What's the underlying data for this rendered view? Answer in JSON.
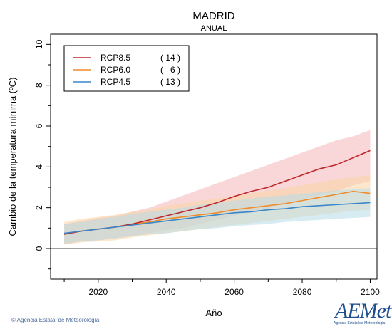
{
  "chart_data": {
    "type": "line",
    "title": "MADRID",
    "subtitle": "ANUAL",
    "xlabel": "Año",
    "ylabel": "Cambio de la temperatura mínima (ºC)",
    "xlim": [
      2006,
      2102
    ],
    "ylim": [
      -1.5,
      10.5
    ],
    "x_ticks": [
      2020,
      2040,
      2060,
      2080,
      2100
    ],
    "y_ticks": [
      0,
      2,
      4,
      6,
      8,
      10
    ],
    "legend_position": "top-left",
    "grid": false,
    "zero_line": true,
    "series": [
      {
        "name": "RCP8.5",
        "count": "( 14 )",
        "color": "#c0272d",
        "band_color": "#f4b6b9",
        "x": [
          2010,
          2015,
          2020,
          2025,
          2030,
          2035,
          2040,
          2045,
          2050,
          2055,
          2060,
          2065,
          2070,
          2075,
          2080,
          2085,
          2090,
          2095,
          2100
        ],
        "mean": [
          0.7,
          0.85,
          0.95,
          1.05,
          1.2,
          1.4,
          1.6,
          1.8,
          2.0,
          2.25,
          2.55,
          2.8,
          3.0,
          3.3,
          3.6,
          3.9,
          4.1,
          4.45,
          4.8
        ],
        "low": [
          0.2,
          0.35,
          0.4,
          0.5,
          0.6,
          0.75,
          0.9,
          1.0,
          1.2,
          1.4,
          1.6,
          1.8,
          1.95,
          2.2,
          2.4,
          2.6,
          2.8,
          3.1,
          3.3
        ],
        "high": [
          1.2,
          1.35,
          1.5,
          1.6,
          1.8,
          2.0,
          2.3,
          2.6,
          2.9,
          3.2,
          3.5,
          3.8,
          4.1,
          4.4,
          4.7,
          5.0,
          5.3,
          5.5,
          5.8
        ]
      },
      {
        "name": "RCP6.0",
        "count": "(   6 )",
        "color": "#f08c2a",
        "band_color": "#f9d3a2",
        "x": [
          2010,
          2015,
          2020,
          2025,
          2030,
          2035,
          2040,
          2045,
          2050,
          2055,
          2060,
          2065,
          2070,
          2075,
          2080,
          2085,
          2090,
          2095,
          2100
        ],
        "mean": [
          0.7,
          0.85,
          0.95,
          1.05,
          1.2,
          1.3,
          1.45,
          1.55,
          1.65,
          1.75,
          1.9,
          2.0,
          2.1,
          2.2,
          2.35,
          2.5,
          2.65,
          2.8,
          2.7
        ],
        "low": [
          0.2,
          0.3,
          0.35,
          0.4,
          0.55,
          0.65,
          0.75,
          0.85,
          0.95,
          1.05,
          1.15,
          1.25,
          1.35,
          1.45,
          1.55,
          1.65,
          1.75,
          1.85,
          1.9
        ],
        "high": [
          1.3,
          1.45,
          1.55,
          1.65,
          1.8,
          1.9,
          2.1,
          2.2,
          2.35,
          2.45,
          2.6,
          2.7,
          2.85,
          2.95,
          3.1,
          3.25,
          3.4,
          3.5,
          3.6
        ]
      },
      {
        "name": "RCP4.5",
        "count": "( 13 )",
        "color": "#3a86c8",
        "band_color": "#b7dce8",
        "x": [
          2010,
          2015,
          2020,
          2025,
          2030,
          2035,
          2040,
          2045,
          2050,
          2055,
          2060,
          2065,
          2070,
          2075,
          2080,
          2085,
          2090,
          2095,
          2100
        ],
        "mean": [
          0.75,
          0.85,
          0.95,
          1.05,
          1.15,
          1.25,
          1.35,
          1.45,
          1.55,
          1.65,
          1.75,
          1.8,
          1.9,
          1.95,
          2.05,
          2.1,
          2.15,
          2.2,
          2.25
        ],
        "low": [
          0.25,
          0.35,
          0.4,
          0.5,
          0.6,
          0.7,
          0.75,
          0.85,
          0.95,
          1.0,
          1.1,
          1.15,
          1.2,
          1.3,
          1.35,
          1.4,
          1.45,
          1.5,
          1.55
        ],
        "high": [
          1.2,
          1.3,
          1.45,
          1.55,
          1.7,
          1.8,
          1.9,
          2.0,
          2.15,
          2.25,
          2.35,
          2.45,
          2.55,
          2.6,
          2.7,
          2.75,
          2.85,
          2.9,
          2.95
        ]
      }
    ]
  },
  "footer": {
    "credit": "© Agencia Estatal de Meteorología"
  },
  "logo": {
    "brand": "AEMet",
    "subtitle": "Agencia Estatal de Meteorología"
  }
}
